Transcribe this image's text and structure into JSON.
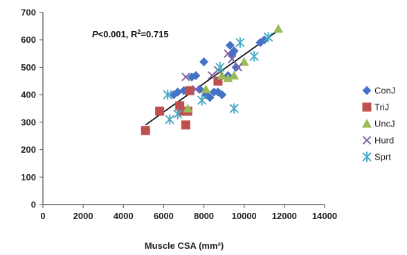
{
  "chart_data": {
    "type": "scatter",
    "title": "",
    "xlabel": "Muscle CSA (mm²)",
    "ylabel": "",
    "xlim": [
      0,
      14000
    ],
    "ylim": [
      0,
      700
    ],
    "x_ticks": [
      0,
      2000,
      4000,
      6000,
      8000,
      10000,
      12000,
      14000
    ],
    "y_ticks": [
      0,
      100,
      200,
      300,
      400,
      500,
      600,
      700
    ],
    "grid": false,
    "legend_position": "right",
    "annotation": {
      "p_symbol": "P",
      "p_text": "<0.001, R",
      "sup": "2",
      "r_text": "=0.715"
    },
    "series": [
      {
        "name": "ConJ",
        "marker": "diamond",
        "color": "#4472c4",
        "points": [
          [
            6500,
            400
          ],
          [
            6700,
            410
          ],
          [
            7000,
            415
          ],
          [
            7400,
            465
          ],
          [
            7600,
            470
          ],
          [
            7800,
            420
          ],
          [
            8000,
            520
          ],
          [
            8100,
            400
          ],
          [
            8300,
            390
          ],
          [
            8500,
            410
          ],
          [
            8700,
            410
          ],
          [
            8900,
            400
          ],
          [
            9200,
            470
          ],
          [
            9300,
            580
          ],
          [
            9400,
            550
          ],
          [
            9500,
            560
          ],
          [
            9600,
            500
          ],
          [
            10800,
            590
          ],
          [
            11000,
            600
          ]
        ]
      },
      {
        "name": "TriJ",
        "marker": "square",
        "color": "#c0504d",
        "points": [
          [
            5100,
            270
          ],
          [
            5800,
            340
          ],
          [
            6800,
            360
          ],
          [
            6900,
            340
          ],
          [
            7100,
            290
          ],
          [
            7200,
            340
          ],
          [
            7300,
            415
          ],
          [
            8700,
            450
          ]
        ]
      },
      {
        "name": "UncJ",
        "marker": "triangle",
        "color": "#9bbb59",
        "points": [
          [
            7200,
            350
          ],
          [
            8100,
            420
          ],
          [
            8900,
            470
          ],
          [
            9200,
            460
          ],
          [
            9500,
            470
          ],
          [
            10000,
            520
          ],
          [
            11700,
            640
          ]
        ]
      },
      {
        "name": "Hurd",
        "marker": "x",
        "color": "#8064a2",
        "points": [
          [
            7100,
            465
          ],
          [
            7600,
            420
          ],
          [
            8400,
            470
          ],
          [
            8700,
            490
          ],
          [
            9200,
            550
          ],
          [
            9400,
            530
          ],
          [
            9700,
            500
          ]
        ]
      },
      {
        "name": "Sprt",
        "marker": "star",
        "color": "#4bacc6",
        "points": [
          [
            6200,
            400
          ],
          [
            6300,
            310
          ],
          [
            6700,
            330
          ],
          [
            7900,
            380
          ],
          [
            8800,
            500
          ],
          [
            9500,
            350
          ],
          [
            9800,
            590
          ],
          [
            10500,
            540
          ],
          [
            11200,
            610
          ]
        ]
      }
    ],
    "trendline": {
      "x": [
        5100,
        11800
      ],
      "y": [
        290,
        640
      ],
      "color": "#111111"
    }
  }
}
